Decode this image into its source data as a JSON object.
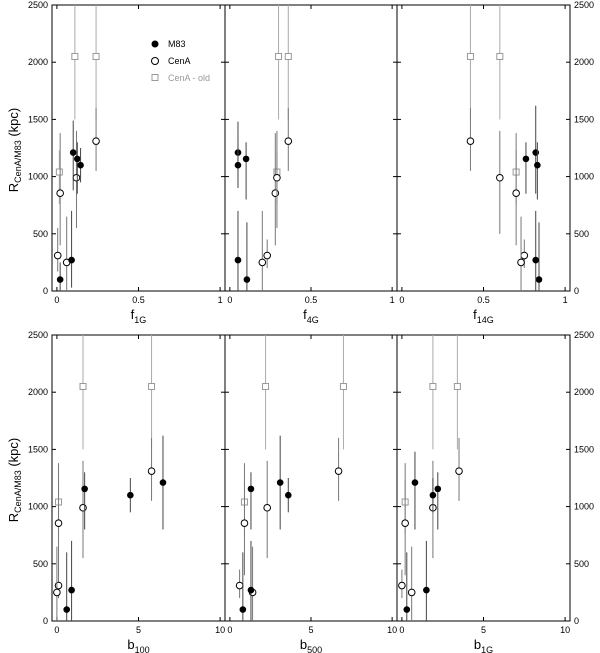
{
  "figure": {
    "ylabel_main": "R",
    "ylabel_sub": "CenA/M83",
    "ylabel_unit": " (kpc)",
    "legend": [
      {
        "label": "M83",
        "marker": "filled-circle",
        "color": "#000000"
      },
      {
        "label": "CenA",
        "marker": "open-circle",
        "color": "#000000"
      },
      {
        "label": "CenA - old",
        "marker": "open-square",
        "color": "#999999"
      }
    ]
  },
  "chart_data": [
    {
      "type": "scatter",
      "xlabel_main": "f",
      "xlabel_sub": "1G",
      "xlim": [
        0,
        1
      ],
      "ylim": [
        0,
        2500
      ],
      "xticks": [
        "0",
        "0.5",
        "1"
      ],
      "yticks": [
        "0",
        "500",
        "1000",
        "1500",
        "2000",
        "2500"
      ],
      "series": [
        {
          "name": "M83",
          "points": [
            {
              "x": 0.02,
              "y": 100,
              "lo": 0,
              "hi": 250
            },
            {
              "x": 0.09,
              "y": 270,
              "lo": 30,
              "hi": 700
            },
            {
              "x": 0.1,
              "y": 1210,
              "lo": 880,
              "hi": 1490
            },
            {
              "x": 0.125,
              "y": 1155,
              "lo": 850,
              "hi": 1300
            },
            {
              "x": 0.145,
              "y": 1100,
              "lo": 950,
              "hi": 1250
            }
          ]
        },
        {
          "name": "CenA",
          "points": [
            {
              "x": 0.005,
              "y": 310,
              "lo": 170,
              "hi": 550
            },
            {
              "x": 0.02,
              "y": 855,
              "lo": 400,
              "hi": 1380
            },
            {
              "x": 0.06,
              "y": 250,
              "lo": 0,
              "hi": 650
            },
            {
              "x": 0.12,
              "y": 990,
              "lo": 550,
              "hi": 1400
            },
            {
              "x": 0.24,
              "y": 1310,
              "lo": 1050,
              "hi": 1600
            }
          ]
        },
        {
          "name": "CenA - old",
          "points": [
            {
              "x": 0.015,
              "y": 1040,
              "lo": 760,
              "hi": 1230
            },
            {
              "x": 0.11,
              "y": 2050,
              "lo": 1500,
              "hi": 2500
            },
            {
              "x": 0.24,
              "y": 2050,
              "lo": 1500,
              "hi": 2500
            }
          ]
        }
      ]
    },
    {
      "type": "scatter",
      "xlabel_main": "f",
      "xlabel_sub": "4G",
      "xlim": [
        0,
        1
      ],
      "ylim": [
        0,
        2500
      ],
      "xticks": [
        "0",
        "0.5",
        "1"
      ],
      "yticks": [],
      "series": [
        {
          "name": "M83",
          "points": [
            {
              "x": 0.105,
              "y": 100,
              "lo": 0,
              "hi": 600
            },
            {
              "x": 0.05,
              "y": 270,
              "lo": 0,
              "hi": 700
            },
            {
              "x": 0.05,
              "y": 1210,
              "lo": 950,
              "hi": 1480
            },
            {
              "x": 0.1,
              "y": 1155,
              "lo": 800,
              "hi": 1300
            },
            {
              "x": 0.05,
              "y": 1100,
              "lo": 900,
              "hi": 1300
            }
          ]
        },
        {
          "name": "CenA",
          "points": [
            {
              "x": 0.23,
              "y": 310,
              "lo": 200,
              "hi": 450
            },
            {
              "x": 0.28,
              "y": 855,
              "lo": 400,
              "hi": 1380
            },
            {
              "x": 0.2,
              "y": 250,
              "lo": 0,
              "hi": 700
            },
            {
              "x": 0.29,
              "y": 990,
              "lo": 550,
              "hi": 1400
            },
            {
              "x": 0.36,
              "y": 1310,
              "lo": 1050,
              "hi": 1600
            }
          ]
        },
        {
          "name": "CenA - old",
          "points": [
            {
              "x": 0.29,
              "y": 1040,
              "lo": 760,
              "hi": 1230
            },
            {
              "x": 0.3,
              "y": 2050,
              "lo": 1500,
              "hi": 2500
            },
            {
              "x": 0.36,
              "y": 2050,
              "lo": 1500,
              "hi": 2500
            }
          ]
        }
      ]
    },
    {
      "type": "scatter",
      "xlabel_main": "f",
      "xlabel_sub": "14G",
      "xlim": [
        0,
        1
      ],
      "ylim": [
        0,
        2500
      ],
      "xticks": [
        "0",
        "0.5",
        "1"
      ],
      "yticks_right": [
        "0",
        "500",
        "1000",
        "1500",
        "2000",
        "2500"
      ],
      "series": [
        {
          "name": "M83",
          "points": [
            {
              "x": 0.84,
              "y": 100,
              "lo": 0,
              "hi": 600
            },
            {
              "x": 0.82,
              "y": 270,
              "lo": 0,
              "hi": 700
            },
            {
              "x": 0.82,
              "y": 1210,
              "lo": 850,
              "hi": 1620
            },
            {
              "x": 0.76,
              "y": 1155,
              "lo": 850,
              "hi": 1300
            },
            {
              "x": 0.83,
              "y": 1100,
              "lo": 800,
              "hi": 1300
            }
          ]
        },
        {
          "name": "CenA",
          "points": [
            {
              "x": 0.75,
              "y": 310,
              "lo": 200,
              "hi": 450
            },
            {
              "x": 0.7,
              "y": 855,
              "lo": 400,
              "hi": 1380
            },
            {
              "x": 0.73,
              "y": 250,
              "lo": 0,
              "hi": 650
            },
            {
              "x": 0.6,
              "y": 990,
              "lo": 500,
              "hi": 1400
            },
            {
              "x": 0.42,
              "y": 1310,
              "lo": 1050,
              "hi": 1600
            }
          ]
        },
        {
          "name": "CenA - old",
          "points": [
            {
              "x": 0.7,
              "y": 1040,
              "lo": 760,
              "hi": 1230
            },
            {
              "x": 0.42,
              "y": 2050,
              "lo": 1500,
              "hi": 2500
            },
            {
              "x": 0.6,
              "y": 2050,
              "lo": 1500,
              "hi": 2500
            }
          ]
        }
      ]
    },
    {
      "type": "scatter",
      "xlabel_main": "b",
      "xlabel_sub": "100",
      "xlim": [
        0,
        10
      ],
      "ylim": [
        0,
        2500
      ],
      "xticks": [
        "0",
        "5",
        "10"
      ],
      "yticks": [
        "0",
        "500",
        "1000",
        "1500",
        "2000",
        "2500"
      ],
      "series": [
        {
          "name": "M83",
          "points": [
            {
              "x": 0.6,
              "y": 100,
              "lo": 0,
              "hi": 600
            },
            {
              "x": 0.9,
              "y": 270,
              "lo": 0,
              "hi": 700
            },
            {
              "x": 6.5,
              "y": 1210,
              "lo": 800,
              "hi": 1620
            },
            {
              "x": 1.7,
              "y": 1155,
              "lo": 800,
              "hi": 1300
            },
            {
              "x": 4.5,
              "y": 1100,
              "lo": 950,
              "hi": 1250
            }
          ]
        },
        {
          "name": "CenA",
          "points": [
            {
              "x": 0.1,
              "y": 310,
              "lo": 200,
              "hi": 450
            },
            {
              "x": 0.1,
              "y": 855,
              "lo": 400,
              "hi": 1380
            },
            {
              "x": 0.0,
              "y": 250,
              "lo": 0,
              "hi": 650
            },
            {
              "x": 1.6,
              "y": 990,
              "lo": 550,
              "hi": 1400
            },
            {
              "x": 5.8,
              "y": 1310,
              "lo": 1050,
              "hi": 1600
            }
          ]
        },
        {
          "name": "CenA - old",
          "points": [
            {
              "x": 0.1,
              "y": 1040,
              "lo": 760,
              "hi": 1230
            },
            {
              "x": 1.6,
              "y": 2050,
              "lo": 1500,
              "hi": 2500
            },
            {
              "x": 5.8,
              "y": 2050,
              "lo": 1500,
              "hi": 2500
            }
          ]
        }
      ]
    },
    {
      "type": "scatter",
      "xlabel_main": "b",
      "xlabel_sub": "500",
      "xlim": [
        0,
        10
      ],
      "ylim": [
        0,
        2500
      ],
      "xticks": [
        "0",
        "5",
        "10"
      ],
      "yticks": [],
      "series": [
        {
          "name": "M83",
          "points": [
            {
              "x": 0.8,
              "y": 100,
              "lo": 0,
              "hi": 600
            },
            {
              "x": 1.3,
              "y": 270,
              "lo": 0,
              "hi": 700
            },
            {
              "x": 1.3,
              "y": 1155,
              "lo": 800,
              "hi": 1300
            },
            {
              "x": 3.6,
              "y": 1100,
              "lo": 950,
              "hi": 1250
            },
            {
              "x": 3.1,
              "y": 1210,
              "lo": 800,
              "hi": 1620
            }
          ]
        },
        {
          "name": "CenA",
          "points": [
            {
              "x": 0.6,
              "y": 310,
              "lo": 200,
              "hi": 450
            },
            {
              "x": 0.9,
              "y": 855,
              "lo": 400,
              "hi": 1380
            },
            {
              "x": 1.4,
              "y": 250,
              "lo": 0,
              "hi": 650
            },
            {
              "x": 2.3,
              "y": 990,
              "lo": 550,
              "hi": 1400
            },
            {
              "x": 6.7,
              "y": 1310,
              "lo": 1050,
              "hi": 1600
            }
          ]
        },
        {
          "name": "CenA - old",
          "points": [
            {
              "x": 0.9,
              "y": 1040,
              "lo": 760,
              "hi": 1230
            },
            {
              "x": 2.2,
              "y": 2050,
              "lo": 1500,
              "hi": 2500
            },
            {
              "x": 7.0,
              "y": 2050,
              "lo": 1500,
              "hi": 2500
            }
          ]
        }
      ]
    },
    {
      "type": "scatter",
      "xlabel_main": "b",
      "xlabel_sub": "1G",
      "xlim": [
        0,
        10
      ],
      "ylim": [
        0,
        2500
      ],
      "xticks": [
        "0",
        "5",
        "10"
      ],
      "yticks_right": [
        "0",
        "500",
        "1000",
        "1500",
        "2000",
        "2500"
      ],
      "series": [
        {
          "name": "M83",
          "points": [
            {
              "x": 0.3,
              "y": 100,
              "lo": 0,
              "hi": 600
            },
            {
              "x": 1.5,
              "y": 270,
              "lo": 0,
              "hi": 700
            },
            {
              "x": 0.8,
              "y": 1210,
              "lo": 800,
              "hi": 1480
            },
            {
              "x": 2.2,
              "y": 1155,
              "lo": 800,
              "hi": 1300
            },
            {
              "x": 1.9,
              "y": 1100,
              "lo": 950,
              "hi": 1250
            }
          ]
        },
        {
          "name": "CenA",
          "points": [
            {
              "x": 0.0,
              "y": 310,
              "lo": 200,
              "hi": 450
            },
            {
              "x": 0.2,
              "y": 855,
              "lo": 400,
              "hi": 1380
            },
            {
              "x": 0.6,
              "y": 250,
              "lo": 0,
              "hi": 650
            },
            {
              "x": 1.9,
              "y": 990,
              "lo": 550,
              "hi": 1400
            },
            {
              "x": 3.5,
              "y": 1310,
              "lo": 1050,
              "hi": 1600
            }
          ]
        },
        {
          "name": "CenA - old",
          "points": [
            {
              "x": 0.2,
              "y": 1040,
              "lo": 760,
              "hi": 1230
            },
            {
              "x": 1.9,
              "y": 2050,
              "lo": 1500,
              "hi": 2500
            },
            {
              "x": 3.4,
              "y": 2050,
              "lo": 1500,
              "hi": 2500
            }
          ]
        }
      ]
    }
  ]
}
